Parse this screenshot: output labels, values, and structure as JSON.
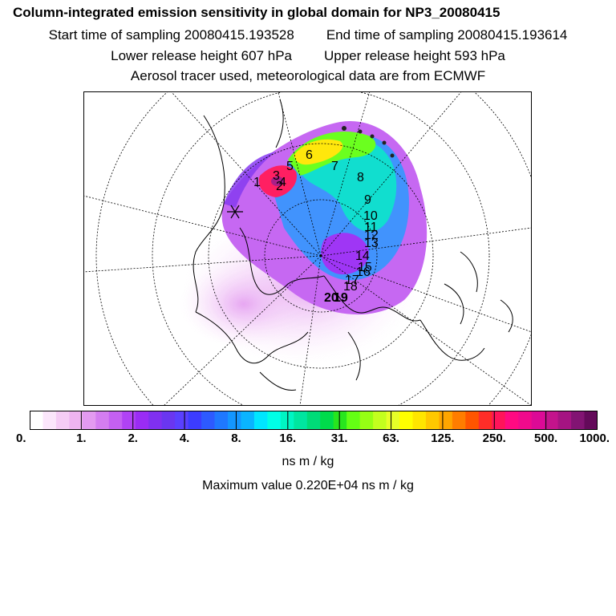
{
  "header": {
    "title": "Column-integrated emission sensitivity in global domain for NP3_20080415",
    "start_time": "Start time of sampling 20080415.193528",
    "end_time": "End time of sampling 20080415.193614",
    "lower_release": "Lower release height  607 hPa",
    "upper_release": "Upper release height  593 hPa",
    "tracer_info": "Aerosol tracer used, meteorological data are from ECMWF"
  },
  "map": {
    "plume_labels": [
      "1",
      "2",
      "3",
      "4",
      "5",
      "6",
      "7",
      "8",
      "9",
      "10",
      "11",
      "12",
      "13",
      "14",
      "15",
      "16",
      "17",
      "18",
      "19",
      "20"
    ]
  },
  "colorbar": {
    "colors": [
      "#ffffff",
      "#fbe6fb",
      "#f5ccf5",
      "#eeb4f0",
      "#e39af0",
      "#d47df0",
      "#c460f2",
      "#b042f5",
      "#9a2cf5",
      "#8030f0",
      "#6a36f0",
      "#5a40ff",
      "#3c3cff",
      "#2d5aff",
      "#1f78ff",
      "#1496ff",
      "#0ab4ff",
      "#00e6ff",
      "#00ffe6",
      "#00f5c3",
      "#00e6a0",
      "#00dc78",
      "#00dc4b",
      "#28e61e",
      "#64ff14",
      "#96ff14",
      "#c3ff1e",
      "#e6ff28",
      "#ffff00",
      "#ffe600",
      "#ffc800",
      "#ffa500",
      "#ff7d00",
      "#ff5500",
      "#ff2d28",
      "#ff145a",
      "#ff0a82",
      "#f00a8c",
      "#dc0a96",
      "#c3148c",
      "#a51482",
      "#821473",
      "#640a5a"
    ],
    "tick_labels": [
      "0.",
      "1.",
      "2.",
      "4.",
      "8.",
      "16.",
      "31.",
      "63.",
      "125.",
      "250.",
      "500.",
      "1000."
    ],
    "units": "ns m / kg"
  },
  "footer": {
    "max_value": "Maximum value  0.220E+04 ns m / kg"
  }
}
